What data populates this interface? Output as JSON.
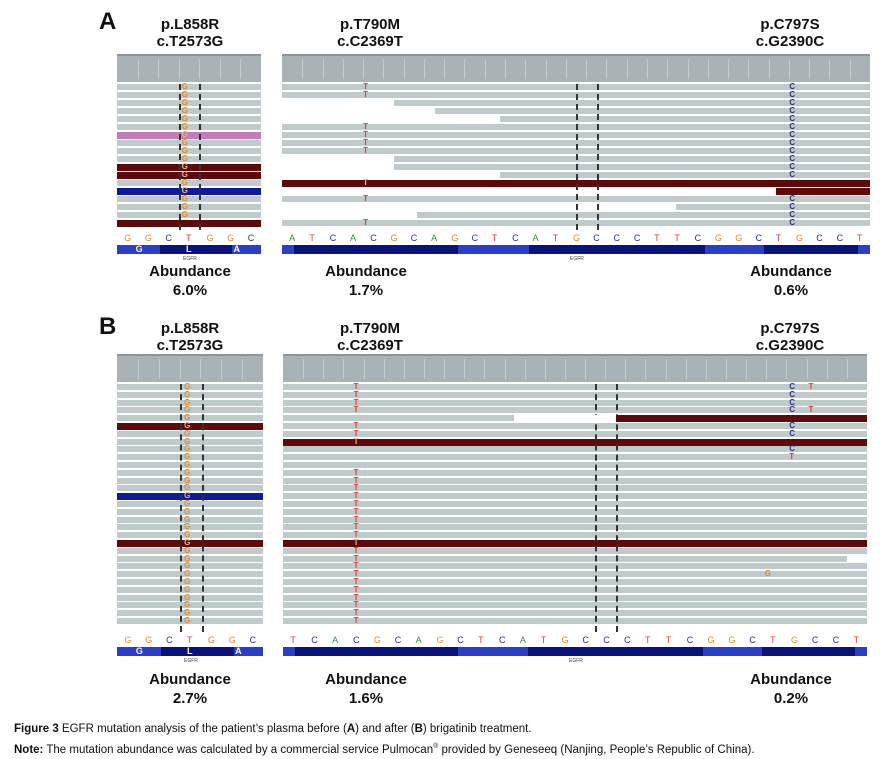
{
  "panels": [
    {
      "letter": "A",
      "mutations": [
        {
          "protein": "p.L858R",
          "cdna": "c.T2573G"
        },
        {
          "protein": "p.T790M",
          "cdna": "c.C2369T"
        },
        {
          "protein": "p.C797S",
          "cdna": "c.G2390C"
        }
      ],
      "left_sequence": [
        "G",
        "G",
        "C",
        "T",
        "G",
        "G",
        "C"
      ],
      "left_amino": [
        "G",
        "L",
        "A"
      ],
      "right_sequence": [
        "A",
        "T",
        "C",
        "A",
        "C",
        "G",
        "C",
        "A",
        "G",
        "C",
        "T",
        "C",
        "A",
        "T",
        "G",
        "C",
        "C",
        "C",
        "T",
        "T",
        "C",
        "G",
        "G",
        "C",
        "T",
        "G",
        "C",
        "C",
        "T"
      ],
      "gene_label": "EGFR",
      "abundance_label": "Abundance",
      "abundances": [
        "6.0%",
        "1.7%",
        "0.6%"
      ]
    },
    {
      "letter": "B",
      "mutations": [
        {
          "protein": "p.L858R",
          "cdna": "c.T2573G"
        },
        {
          "protein": "p.T790M",
          "cdna": "c.C2369T"
        },
        {
          "protein": "p.C797S",
          "cdna": "c.G2390C"
        }
      ],
      "left_sequence": [
        "G",
        "G",
        "C",
        "T",
        "G",
        "G",
        "C"
      ],
      "left_amino": [
        "G",
        "L",
        "A"
      ],
      "right_sequence": [
        "T",
        "C",
        "A",
        "C",
        "G",
        "C",
        "A",
        "G",
        "C",
        "T",
        "C",
        "A",
        "T",
        "G",
        "C",
        "C",
        "C",
        "T",
        "T",
        "C",
        "G",
        "G",
        "C",
        "T",
        "G",
        "C",
        "C",
        "T"
      ],
      "gene_label": "EGFR",
      "abundance_label": "Abundance",
      "abundances": [
        "2.7%",
        "1.6%",
        "0.2%"
      ]
    }
  ],
  "caption": {
    "figure_label": "Figure 3",
    "figure_text_1": " EGFR mutation analysis of the patient’s plasma before (",
    "figure_a": "A",
    "figure_text_2": ") and after (",
    "figure_b": "B",
    "figure_text_3": ") brigatinib treatment.",
    "note_label": "Note:",
    "note_text_1": " The mutation abundance was calculated by a commercial service Pulmocan",
    "note_reg": "®",
    "note_text_2": " provided by Geneseeq (Nanjing, People’s Republic of China)."
  },
  "colors": {
    "base_A": "#3a8f3a",
    "base_C": "#2a2f8a",
    "base_G": "#e38a2a",
    "base_T": "#e0403a",
    "read": "#bfcacb",
    "read_dark": "#5e0a0a",
    "read_blue": "#0d1a9a",
    "read_pink": "#c27bbb"
  }
}
